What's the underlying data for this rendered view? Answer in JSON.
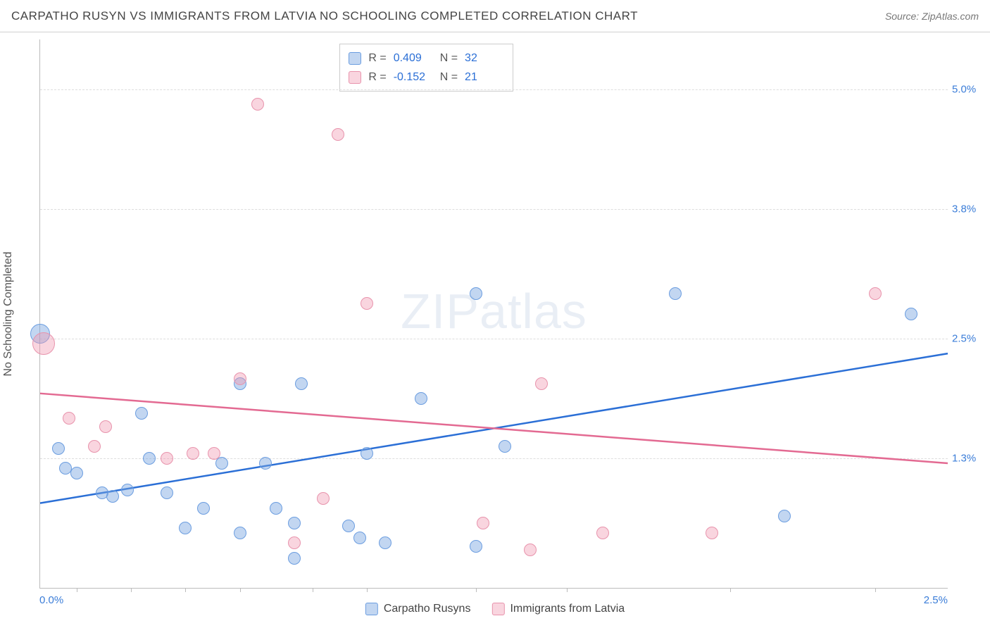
{
  "title": "CARPATHO RUSYN VS IMMIGRANTS FROM LATVIA NO SCHOOLING COMPLETED CORRELATION CHART",
  "source": "Source: ZipAtlas.com",
  "watermark": "ZIPatlas",
  "y_axis_title": "No Schooling Completed",
  "chart": {
    "type": "scatter",
    "xlim": [
      0.0,
      2.5
    ],
    "ylim": [
      0.0,
      5.5
    ],
    "x_tick_labels": {
      "min": "0.0%",
      "max": "2.5%"
    },
    "x_tick_positions": [
      0.1,
      0.25,
      0.4,
      0.55,
      0.75,
      0.9,
      1.2,
      1.45,
      1.9,
      2.3
    ],
    "y_gridlines": [
      {
        "value": 1.3,
        "label": "1.3%"
      },
      {
        "value": 2.5,
        "label": "2.5%"
      },
      {
        "value": 3.8,
        "label": "3.8%"
      },
      {
        "value": 5.0,
        "label": "5.0%"
      }
    ],
    "background_color": "#ffffff",
    "grid_color": "#dddddd",
    "axis_color": "#bbbbbb",
    "label_color": "#3b7dd8"
  },
  "series": [
    {
      "name": "Carpatho Rusyns",
      "fill": "rgba(120,165,225,0.45)",
      "stroke": "#6b9de0",
      "trend_color": "#2b6fd6",
      "r_value": "0.409",
      "n_value": "32",
      "trend": {
        "x1": 0.0,
        "y1": 0.85,
        "x2": 2.5,
        "y2": 2.35
      },
      "points": [
        {
          "x": 0.0,
          "y": 2.55,
          "r": 14
        },
        {
          "x": 0.05,
          "y": 1.4,
          "r": 9
        },
        {
          "x": 0.07,
          "y": 1.2,
          "r": 9
        },
        {
          "x": 0.1,
          "y": 1.15,
          "r": 9
        },
        {
          "x": 0.17,
          "y": 0.95,
          "r": 9
        },
        {
          "x": 0.2,
          "y": 0.92,
          "r": 9
        },
        {
          "x": 0.24,
          "y": 0.98,
          "r": 9
        },
        {
          "x": 0.28,
          "y": 1.75,
          "r": 9
        },
        {
          "x": 0.3,
          "y": 1.3,
          "r": 9
        },
        {
          "x": 0.35,
          "y": 0.95,
          "r": 9
        },
        {
          "x": 0.4,
          "y": 0.6,
          "r": 9
        },
        {
          "x": 0.45,
          "y": 0.8,
          "r": 9
        },
        {
          "x": 0.5,
          "y": 1.25,
          "r": 9
        },
        {
          "x": 0.55,
          "y": 2.05,
          "r": 9
        },
        {
          "x": 0.55,
          "y": 0.55,
          "r": 9
        },
        {
          "x": 0.62,
          "y": 1.25,
          "r": 9
        },
        {
          "x": 0.65,
          "y": 0.8,
          "r": 9
        },
        {
          "x": 0.7,
          "y": 0.3,
          "r": 9
        },
        {
          "x": 0.7,
          "y": 0.65,
          "r": 9
        },
        {
          "x": 0.72,
          "y": 2.05,
          "r": 9
        },
        {
          "x": 0.85,
          "y": 0.62,
          "r": 9
        },
        {
          "x": 0.88,
          "y": 0.5,
          "r": 9
        },
        {
          "x": 0.9,
          "y": 1.35,
          "r": 9
        },
        {
          "x": 0.95,
          "y": 0.45,
          "r": 9
        },
        {
          "x": 1.05,
          "y": 1.9,
          "r": 9
        },
        {
          "x": 1.2,
          "y": 2.95,
          "r": 9
        },
        {
          "x": 1.2,
          "y": 0.42,
          "r": 9
        },
        {
          "x": 1.28,
          "y": 1.42,
          "r": 9
        },
        {
          "x": 1.75,
          "y": 2.95,
          "r": 9
        },
        {
          "x": 2.05,
          "y": 0.72,
          "r": 9
        },
        {
          "x": 2.4,
          "y": 2.75,
          "r": 9
        }
      ]
    },
    {
      "name": "Immigrants from Latvia",
      "fill": "rgba(240,150,175,0.40)",
      "stroke": "#e893ac",
      "trend_color": "#e36a92",
      "r_value": "-0.152",
      "n_value": "21",
      "trend": {
        "x1": 0.0,
        "y1": 1.95,
        "x2": 2.5,
        "y2": 1.25
      },
      "points": [
        {
          "x": 0.01,
          "y": 2.45,
          "r": 16
        },
        {
          "x": 0.08,
          "y": 1.7,
          "r": 9
        },
        {
          "x": 0.15,
          "y": 1.42,
          "r": 9
        },
        {
          "x": 0.18,
          "y": 1.62,
          "r": 9
        },
        {
          "x": 0.35,
          "y": 1.3,
          "r": 9
        },
        {
          "x": 0.42,
          "y": 1.35,
          "r": 9
        },
        {
          "x": 0.48,
          "y": 1.35,
          "r": 9
        },
        {
          "x": 0.55,
          "y": 2.1,
          "r": 9
        },
        {
          "x": 0.6,
          "y": 4.85,
          "r": 9
        },
        {
          "x": 0.7,
          "y": 0.45,
          "r": 9
        },
        {
          "x": 0.78,
          "y": 0.9,
          "r": 9
        },
        {
          "x": 0.82,
          "y": 4.55,
          "r": 9
        },
        {
          "x": 0.9,
          "y": 2.85,
          "r": 9
        },
        {
          "x": 1.22,
          "y": 0.65,
          "r": 9
        },
        {
          "x": 1.35,
          "y": 0.38,
          "r": 9
        },
        {
          "x": 1.38,
          "y": 2.05,
          "r": 9
        },
        {
          "x": 1.55,
          "y": 0.55,
          "r": 9
        },
        {
          "x": 1.85,
          "y": 0.55,
          "r": 9
        },
        {
          "x": 2.3,
          "y": 2.95,
          "r": 9
        }
      ]
    }
  ],
  "legend": {
    "series1_label": "Carpatho Rusyns",
    "series2_label": "Immigrants from Latvia"
  },
  "stats_labels": {
    "R": "R  =",
    "N": "N  ="
  }
}
